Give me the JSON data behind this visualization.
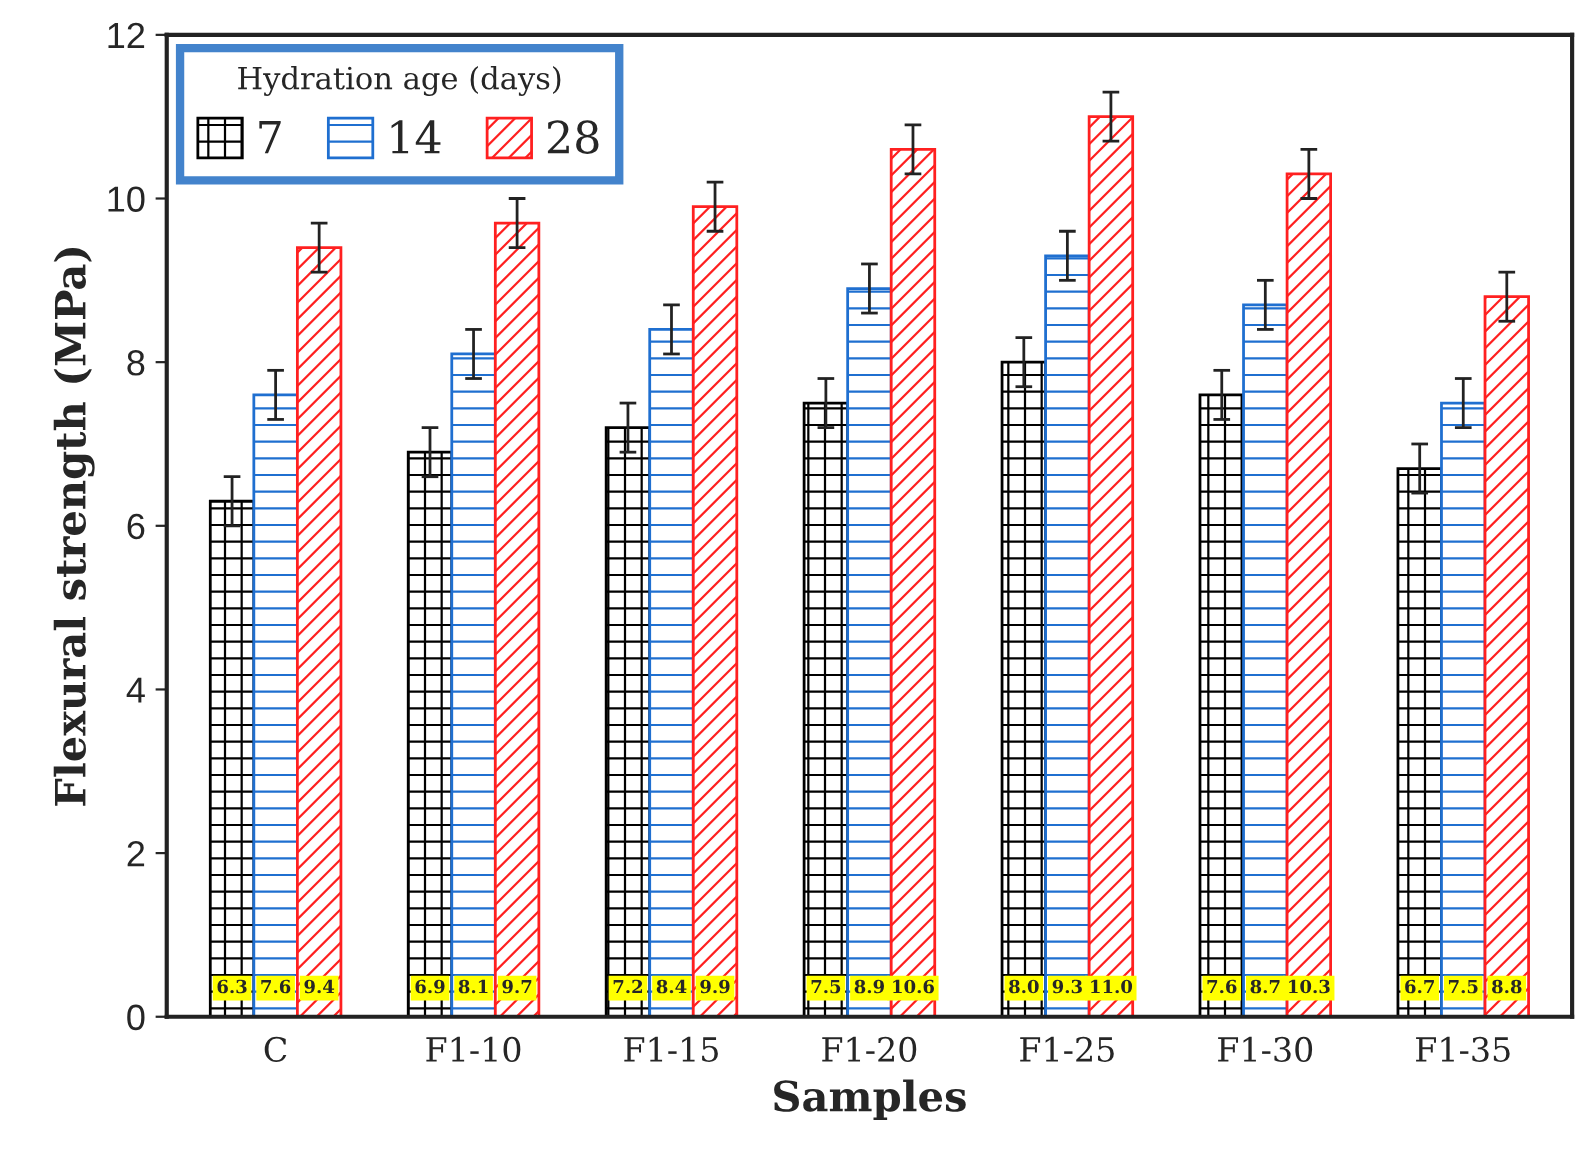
{
  "chart_data": {
    "type": "bar",
    "xlabel": "Samples",
    "ylabel": "Flexural strength (MPa)",
    "legend_title": "Hydration age (days)",
    "categories": [
      "C",
      "F1-10",
      "F1-15",
      "F1-20",
      "F1-25",
      "F1-30",
      "F1-35"
    ],
    "series": [
      {
        "name": "7",
        "color": "#000000",
        "values": [
          6.3,
          6.9,
          7.2,
          7.5,
          8.0,
          7.6,
          6.7
        ],
        "value_labels": [
          "6.3",
          "6.9",
          "7.2",
          "7.5",
          "8.0",
          "7.6",
          "6.7"
        ],
        "errors": [
          0.3,
          0.3,
          0.3,
          0.3,
          0.3,
          0.3,
          0.3
        ]
      },
      {
        "name": "14",
        "color": "#1f6fd0",
        "values": [
          7.6,
          8.1,
          8.4,
          8.9,
          9.3,
          8.7,
          7.5
        ],
        "value_labels": [
          "7.6",
          "8.1",
          "8.4",
          "8.9",
          "9.3",
          "8.7",
          "7.5"
        ],
        "errors": [
          0.3,
          0.3,
          0.3,
          0.3,
          0.3,
          0.3,
          0.3
        ]
      },
      {
        "name": "28",
        "color": "#ff2020",
        "values": [
          9.4,
          9.7,
          9.9,
          10.6,
          11.0,
          10.3,
          8.8
        ],
        "value_labels": [
          "9.4",
          "9.7",
          "9.9",
          "10.6",
          "11.0",
          "10.3",
          "8.8"
        ],
        "errors": [
          0.3,
          0.3,
          0.3,
          0.3,
          0.3,
          0.3,
          0.3
        ]
      }
    ],
    "ylim": [
      0,
      12
    ],
    "yticks": [
      0,
      2,
      4,
      6,
      8,
      10,
      12
    ],
    "grid": false,
    "legend": "top left"
  }
}
